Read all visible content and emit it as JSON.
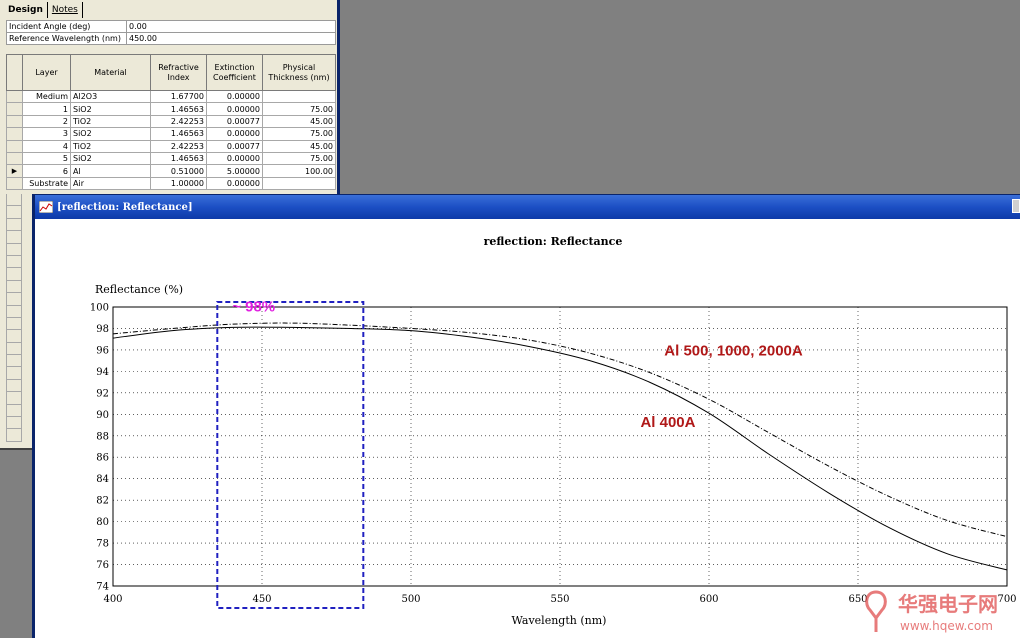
{
  "design_window": {
    "tabs": [
      "Design",
      "Notes"
    ],
    "params": [
      {
        "label": "Incident Angle (deg)",
        "value": "0.00"
      },
      {
        "label": "Reference Wavelength (nm)",
        "value": "450.00"
      }
    ],
    "columns": [
      "Layer",
      "Material",
      "Refractive Index",
      "Extinction Coefficient",
      "Physical Thickness (nm)"
    ],
    "rows": [
      {
        "layer": "Medium",
        "material": "Al2O3",
        "ri": "1.67700",
        "ec": "0.00000",
        "pt": ""
      },
      {
        "layer": "1",
        "material": "SiO2",
        "ri": "1.46563",
        "ec": "0.00000",
        "pt": "75.00"
      },
      {
        "layer": "2",
        "material": "TiO2",
        "ri": "2.42253",
        "ec": "0.00077",
        "pt": "45.00"
      },
      {
        "layer": "3",
        "material": "SiO2",
        "ri": "1.46563",
        "ec": "0.00000",
        "pt": "75.00"
      },
      {
        "layer": "4",
        "material": "TiO2",
        "ri": "2.42253",
        "ec": "0.00077",
        "pt": "45.00"
      },
      {
        "layer": "5",
        "material": "SiO2",
        "ri": "1.46563",
        "ec": "0.00000",
        "pt": "75.00"
      },
      {
        "layer": "6",
        "material": "Al",
        "ri": "0.51000",
        "ec": "5.00000",
        "pt": "100.00"
      },
      {
        "layer": "Substrate",
        "material": "Air",
        "ri": "1.00000",
        "ec": "0.00000",
        "pt": ""
      }
    ],
    "selected_row_index": 6,
    "selected_marker": "▶"
  },
  "reflection_window": {
    "title": "[reflection: Reflectance]"
  },
  "chart_data": {
    "type": "line",
    "title": "reflection: Reflectance",
    "ylabel": "Reflectance (%)",
    "xlabel": "Wavelength (nm)",
    "xlim": [
      400,
      700
    ],
    "ylim": [
      74,
      100
    ],
    "xticks": [
      400,
      450,
      500,
      550,
      600,
      650,
      700
    ],
    "yticks": [
      74,
      76,
      78,
      80,
      82,
      84,
      86,
      88,
      90,
      92,
      94,
      96,
      98,
      100
    ],
    "grid": true,
    "series": [
      {
        "style": "solid",
        "x": [
          400,
          420,
          440,
          460,
          480,
          500,
          520,
          540,
          560,
          580,
          600,
          620,
          640,
          660,
          680,
          700
        ],
        "y": [
          97.1,
          97.8,
          98.1,
          98.1,
          98.0,
          97.8,
          97.2,
          96.3,
          95.0,
          93.0,
          90.1,
          86.3,
          82.7,
          79.5,
          77.0,
          75.5
        ]
      },
      {
        "style": "dashed",
        "x": [
          400,
          420,
          440,
          460,
          480,
          500,
          520,
          540,
          560,
          580,
          600,
          620,
          640,
          660,
          680,
          700
        ],
        "y": [
          97.5,
          98.0,
          98.4,
          98.5,
          98.3,
          98.0,
          97.6,
          96.9,
          95.7,
          93.9,
          91.4,
          88.3,
          85.2,
          82.4,
          80.1,
          78.6
        ]
      }
    ],
    "annotations": [
      {
        "text": "~ 98%",
        "color": "#e020e0",
        "at_x": 440,
        "at_y": 99.6
      },
      {
        "text": "Al  500, 1000, 2000A",
        "color": "#b01818",
        "at_x": 585,
        "at_y": 95.5
      },
      {
        "text": "Al  400A",
        "color": "#b01818",
        "at_x": 577,
        "at_y": 88.8
      }
    ],
    "highlight_box": {
      "x": [
        435,
        484
      ],
      "y_from_bottom": true,
      "color": "#2020c0",
      "style": "dashed"
    }
  },
  "watermark": {
    "text_cn": "华强电子网",
    "text_url": "www.hqew.com",
    "color": "#e05050"
  }
}
